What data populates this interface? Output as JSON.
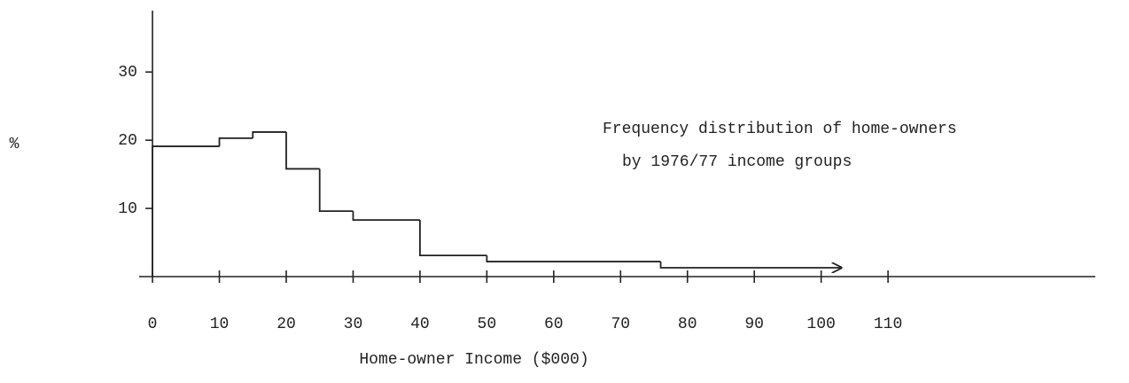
{
  "chart_data": {
    "type": "histogram",
    "title": [
      "Frequency distribution of home-owners",
      "by 1976/77 income groups"
    ],
    "x_label": "Home-owner Income ($000)",
    "y_label": "%",
    "bins": [
      0,
      10,
      15,
      20,
      25,
      30,
      40,
      50,
      76,
      103
    ],
    "values": [
      19.1,
      20.3,
      21.2,
      15.8,
      9.6,
      8.3,
      3.1,
      2.2,
      1.3
    ],
    "color": "#222222",
    "xlim": [
      -2,
      141
    ],
    "xticks": [
      0,
      10,
      20,
      30,
      40,
      50,
      60,
      70,
      80,
      90,
      100,
      110
    ],
    "ylim": [
      0,
      39
    ],
    "yticks": [
      10,
      20,
      30
    ]
  }
}
